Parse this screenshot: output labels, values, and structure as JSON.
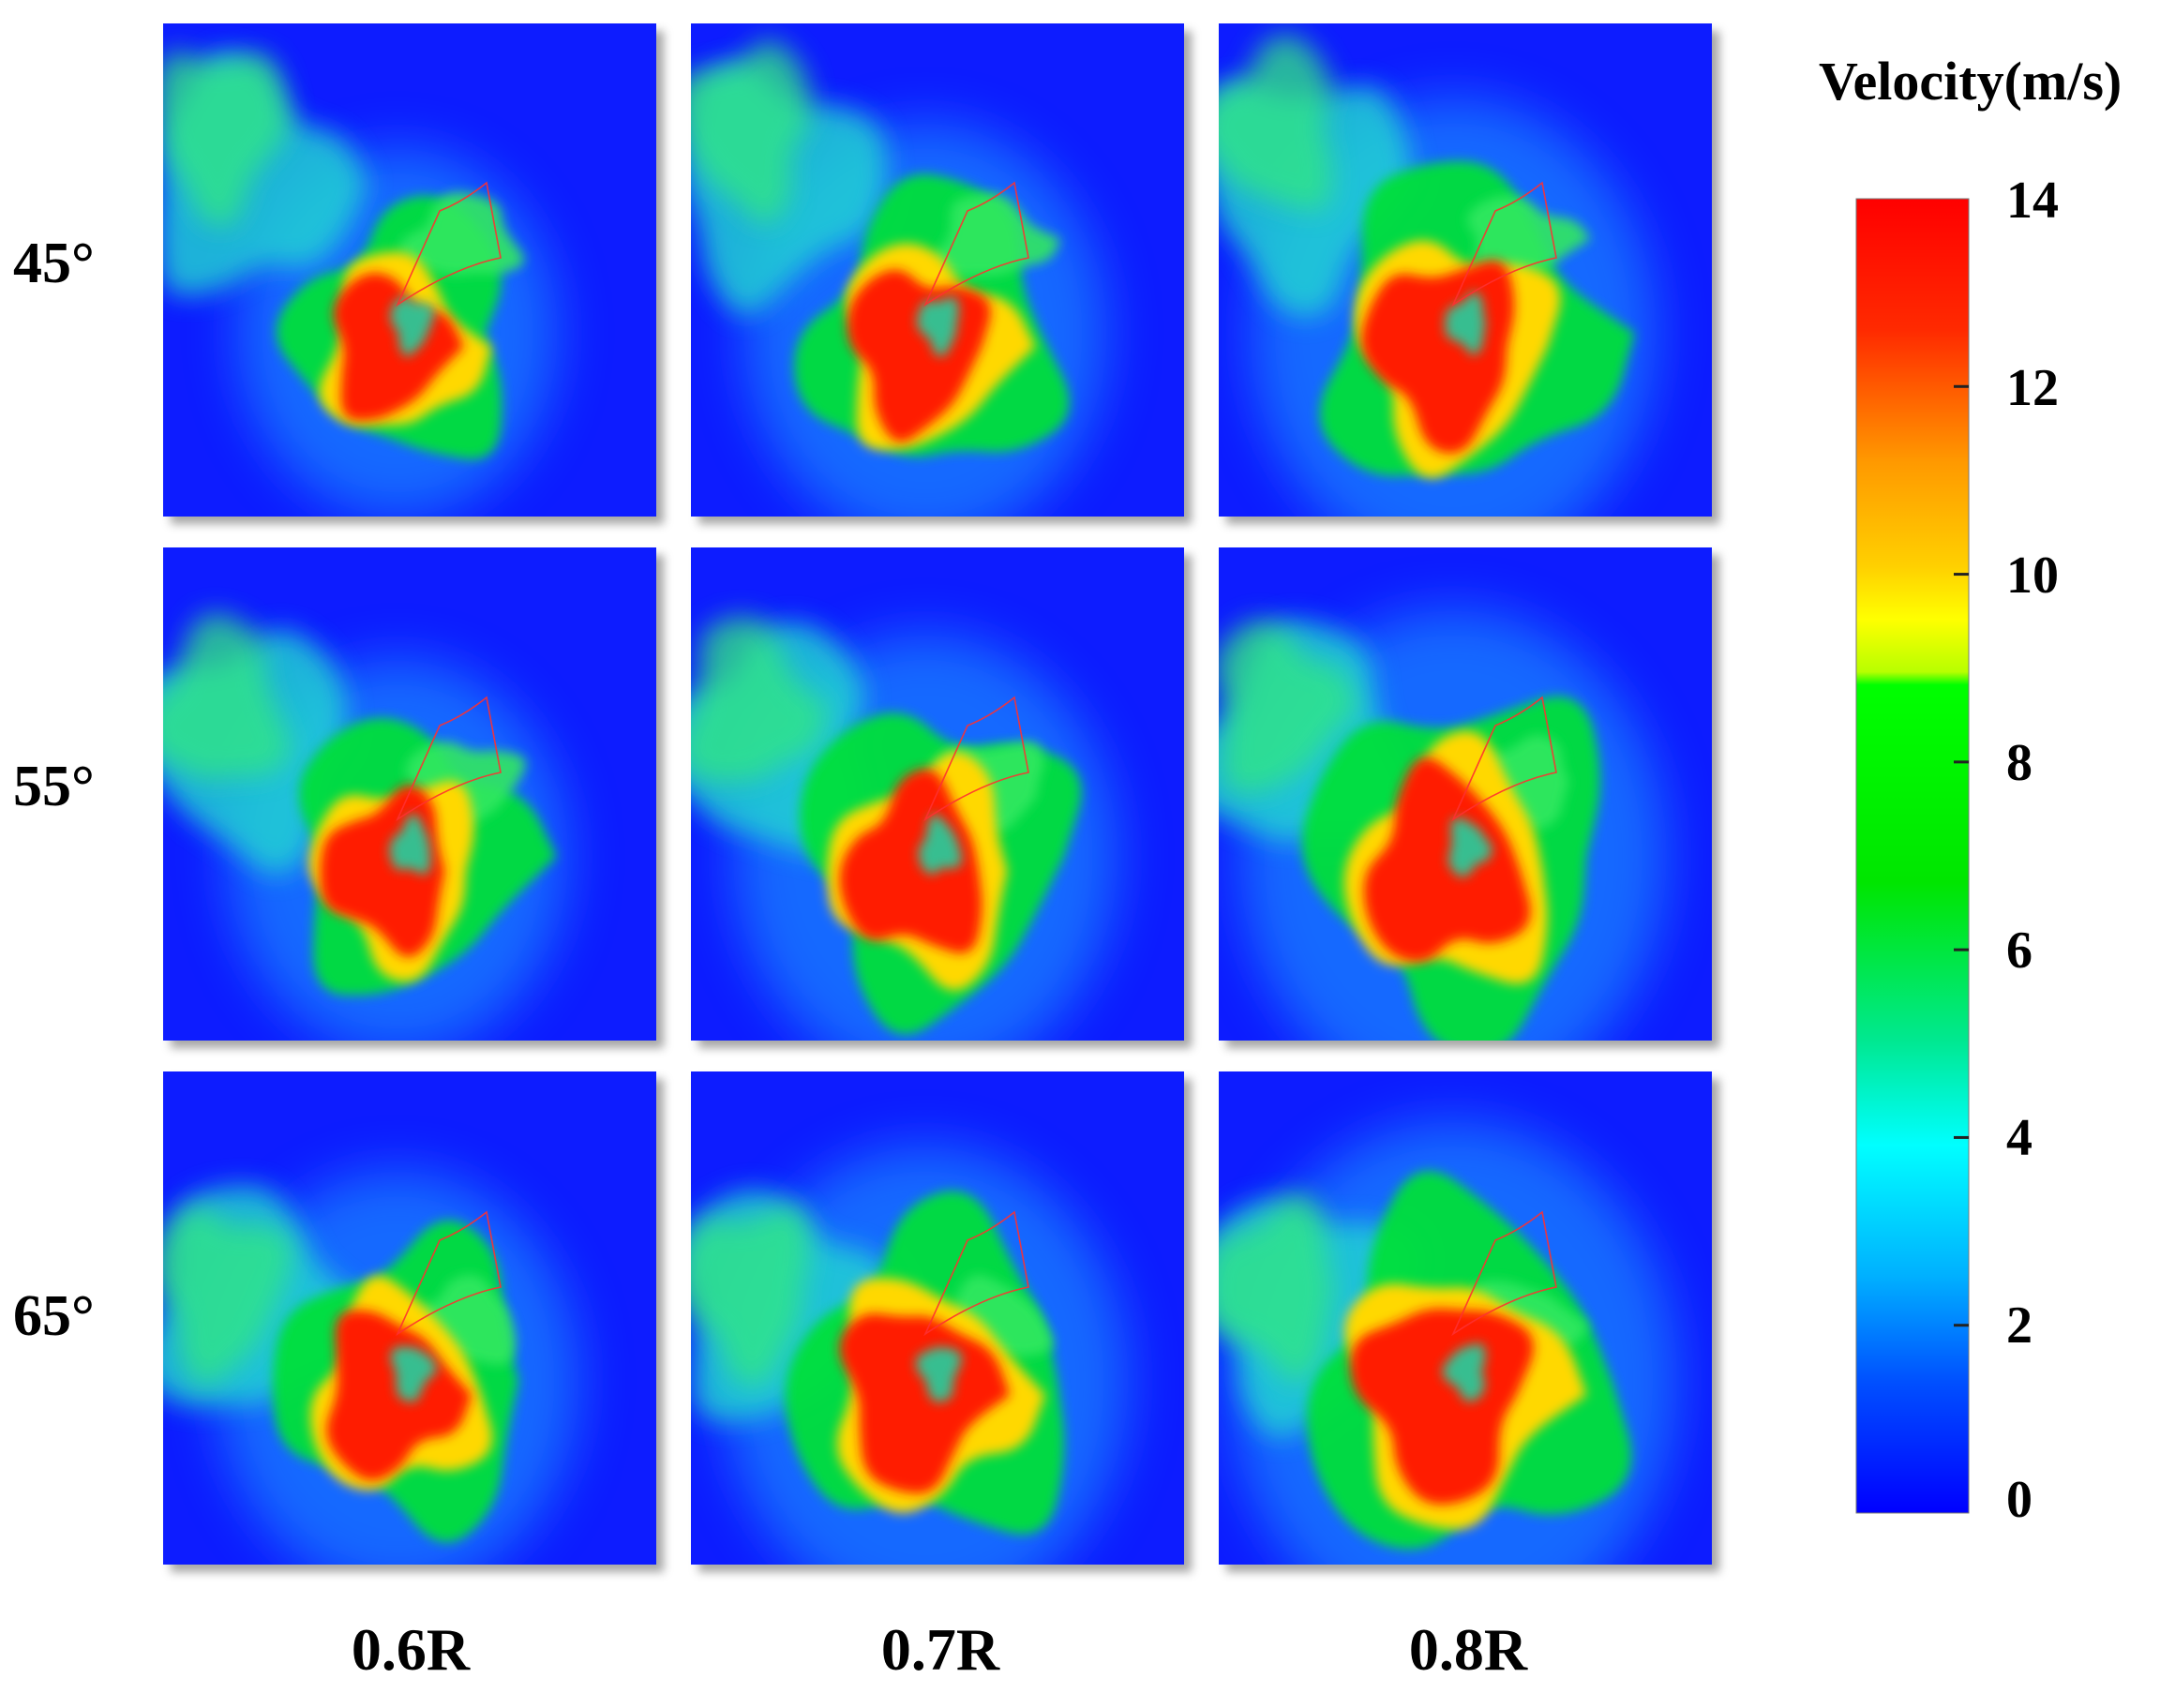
{
  "legend": {
    "title": "Velocity(m/s)",
    "min": 0,
    "max": 14,
    "ticks": [
      "14",
      "12",
      "10",
      "8",
      "6",
      "4",
      "2",
      "0"
    ],
    "colors": [
      "#0000ff",
      "#00c8ff",
      "#00ffff",
      "#00e600",
      "#00ff00",
      "#ffff00",
      "#ff9900",
      "#ff0000"
    ]
  },
  "rows": [
    {
      "label": "45°"
    },
    {
      "label": "55°"
    },
    {
      "label": "65°"
    }
  ],
  "columns": [
    {
      "label": "0.6R"
    },
    {
      "label": "0.7R"
    },
    {
      "label": "0.8R"
    }
  ]
}
